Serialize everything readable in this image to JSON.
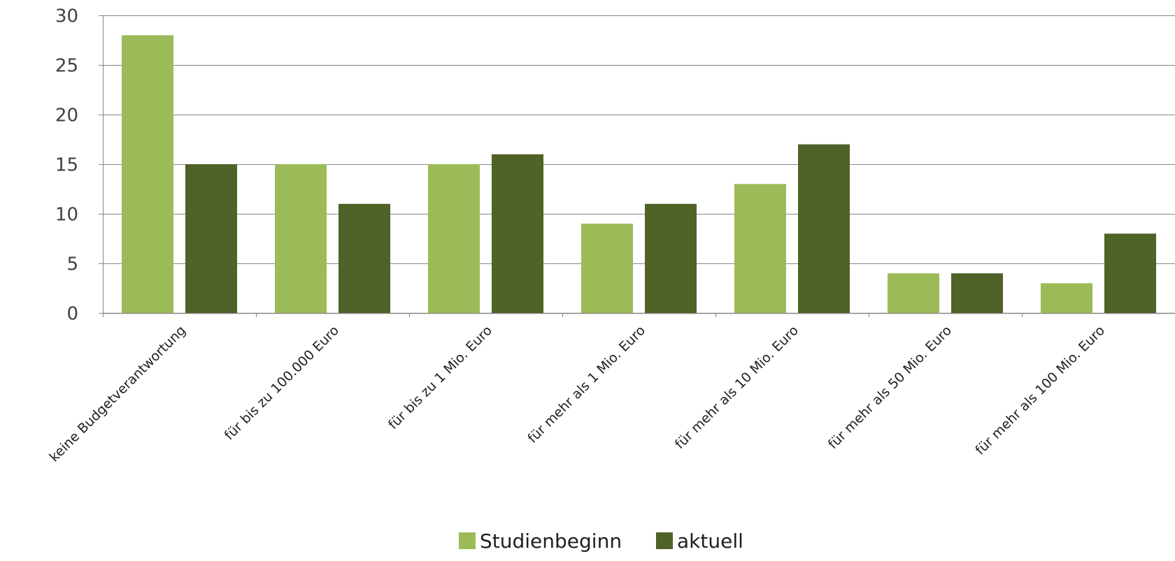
{
  "chart_data": {
    "type": "bar",
    "categories": [
      "keine Budgetverantwortung",
      "für bis zu 100.000 Euro",
      "für bis zu 1 Mio. Euro",
      "für mehr als 1 Mio. Euro",
      "für mehr als 10 Mio. Euro",
      "für mehr als 50 Mio. Euro",
      "für mehr als 100 Mio. Euro"
    ],
    "series": [
      {
        "name": "Studienbeginn",
        "values": [
          28,
          15,
          15,
          9,
          13,
          4,
          3
        ],
        "color": "#9bbb59"
      },
      {
        "name": "aktuell",
        "values": [
          15,
          11,
          16,
          11,
          17,
          4,
          8
        ],
        "color": "#4f6228"
      }
    ],
    "title": "",
    "xlabel": "",
    "ylabel": "",
    "ylim": [
      0,
      30
    ],
    "yticks": [
      "0",
      "5",
      "10",
      "15",
      "20",
      "25",
      "30"
    ],
    "grid": true,
    "gridline_color": "#868686",
    "legend_position": "bottom"
  }
}
